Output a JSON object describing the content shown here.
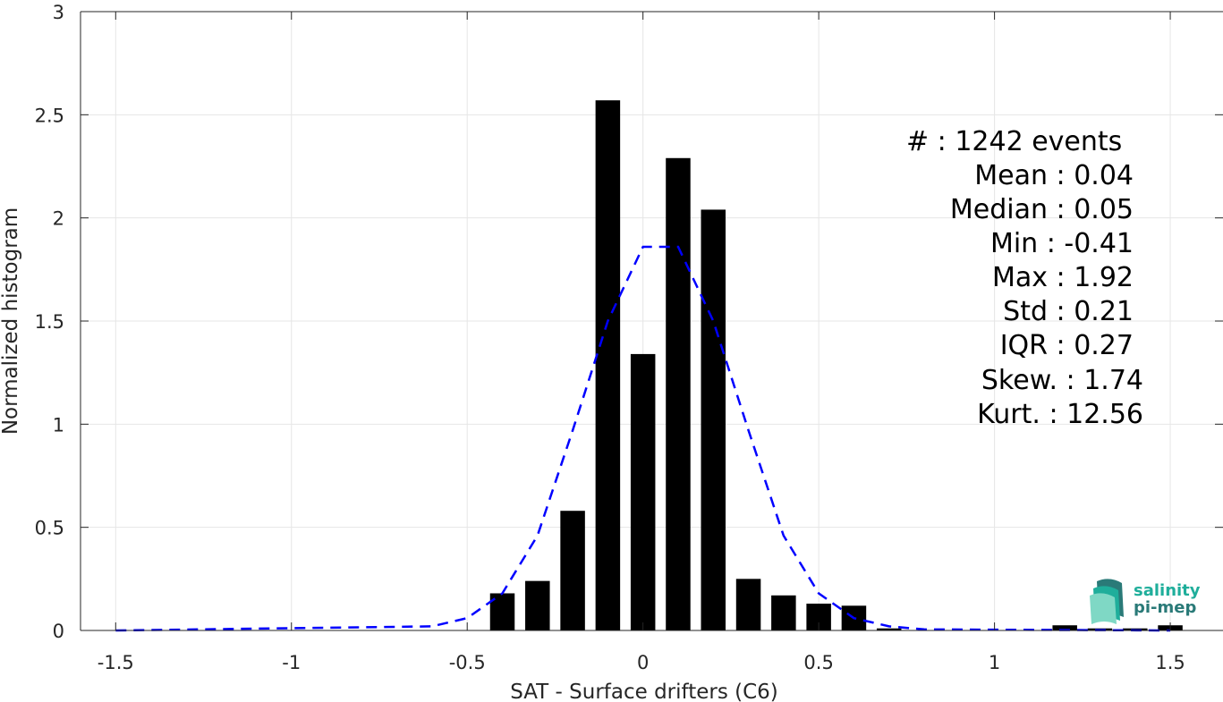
{
  "chart_data": {
    "type": "bar",
    "xlabel": "SAT - Surface drifters (C6)",
    "ylabel": "Normalized histogram",
    "xlim": [
      -1.6,
      1.65
    ],
    "ylim": [
      0,
      3
    ],
    "xticks": [
      -1.5,
      -1,
      -0.5,
      0,
      0.5,
      1,
      1.5
    ],
    "xtick_labels": [
      "-1.5",
      "-1",
      "-0.5",
      "0",
      "0.5",
      "1",
      "1.5"
    ],
    "yticks": [
      0,
      0.5,
      1,
      1.5,
      2,
      2.5,
      3
    ],
    "ytick_labels": [
      "0",
      "0.5",
      "1",
      "1.5",
      "2",
      "2.5",
      "3"
    ],
    "grid": true,
    "bar_width": 0.07,
    "bars": {
      "x": [
        -0.4,
        -0.3,
        -0.2,
        -0.1,
        0,
        0.1,
        0.2,
        0.3,
        0.4,
        0.5,
        0.6,
        0.7,
        1.2,
        1.3,
        1.4,
        1.5
      ],
      "values": [
        0.18,
        0.24,
        0.58,
        2.57,
        1.34,
        2.29,
        2.04,
        0.25,
        0.17,
        0.13,
        0.12,
        0.01,
        0.025,
        0.01,
        0.01,
        0.025
      ],
      "color": "#000000"
    },
    "fit_curve": {
      "style": "dashed",
      "color": "#0000ff",
      "x": [
        -1.5,
        -0.6,
        -0.5,
        -0.4,
        -0.3,
        -0.2,
        -0.1,
        0,
        0.1,
        0.2,
        0.3,
        0.4,
        0.5,
        0.6,
        0.7,
        0.8,
        1.5
      ],
      "y": [
        0,
        0.02,
        0.06,
        0.18,
        0.46,
        0.97,
        1.5,
        1.86,
        1.86,
        1.5,
        0.97,
        0.46,
        0.18,
        0.06,
        0.02,
        0.005,
        0
      ]
    },
    "stats": [
      "#  : 1242 events",
      "Mean : 0.04",
      "Median : 0.05",
      "Min : -0.41",
      "Max : 1.92",
      "Std : 0.21",
      "IQR : 0.27",
      "Skew. : 1.74",
      "Kurt. : 12.56"
    ]
  },
  "logo": {
    "line1": "salinity",
    "line2": "pi-mep",
    "colors": [
      "#1fae9b",
      "#2a7a78",
      "#7fd8c5"
    ]
  }
}
